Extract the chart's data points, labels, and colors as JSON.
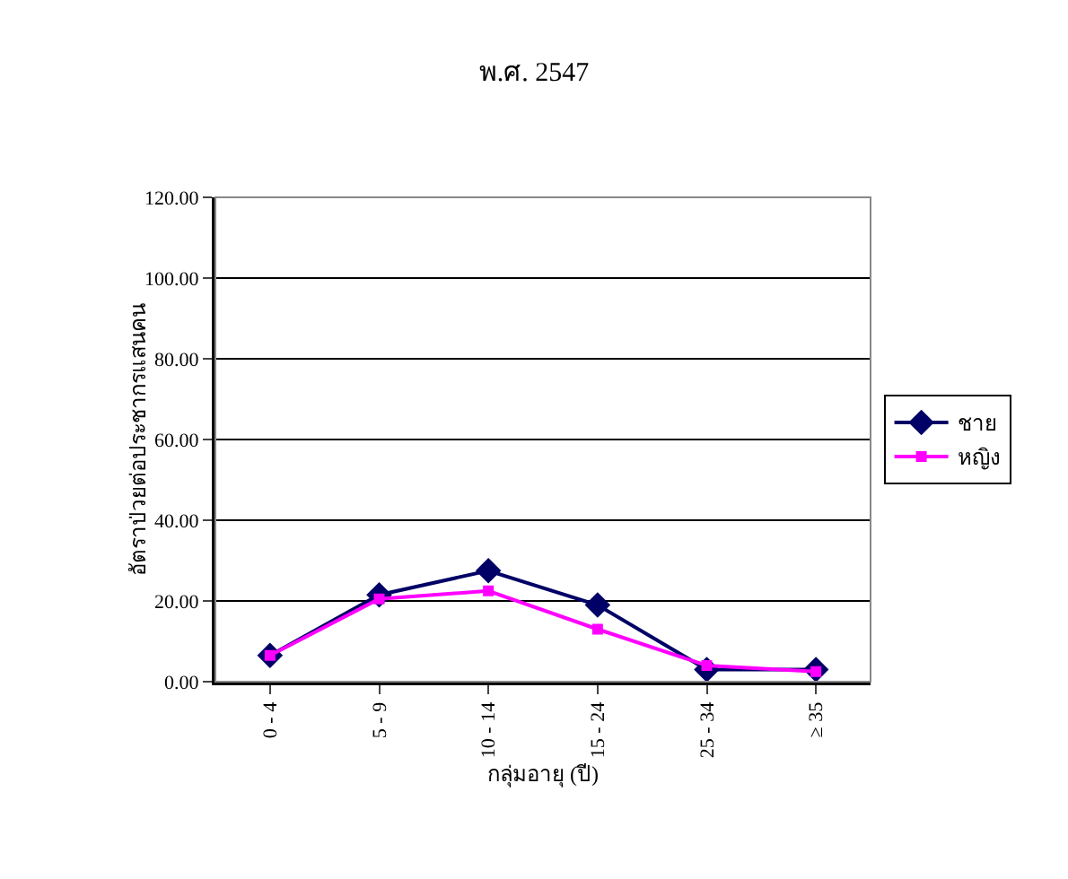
{
  "chart_data": {
    "type": "line",
    "title": "พ.ศ. 2547",
    "xlabel": "กลุ่มอายุ (ปี)",
    "ylabel": "อัตราป่วยต่อประชากรแสนคน",
    "categories": [
      "0 - 4",
      "5 - 9",
      "10 - 14",
      "15 - 24",
      "25 - 34",
      "≥ 35"
    ],
    "series": [
      {
        "name": "ชาย",
        "color": "#000066",
        "marker": "diamond",
        "values": [
          6.5,
          21.5,
          27.5,
          19,
          3,
          3
        ]
      },
      {
        "name": "หญิง",
        "color": "#ff00ff",
        "marker": "square",
        "values": [
          6.5,
          20.5,
          22.5,
          13,
          4,
          2.5
        ]
      }
    ],
    "ylim": [
      0,
      120
    ],
    "yticks": [
      {
        "value": 0,
        "label": "0.00"
      },
      {
        "value": 20,
        "label": "20.00"
      },
      {
        "value": 40,
        "label": "40.00"
      },
      {
        "value": 60,
        "label": "60.00"
      },
      {
        "value": 80,
        "label": "80.00"
      },
      {
        "value": 100,
        "label": "100.00"
      },
      {
        "value": 120,
        "label": "120.00"
      }
    ],
    "grid": "y",
    "legend": "right"
  }
}
